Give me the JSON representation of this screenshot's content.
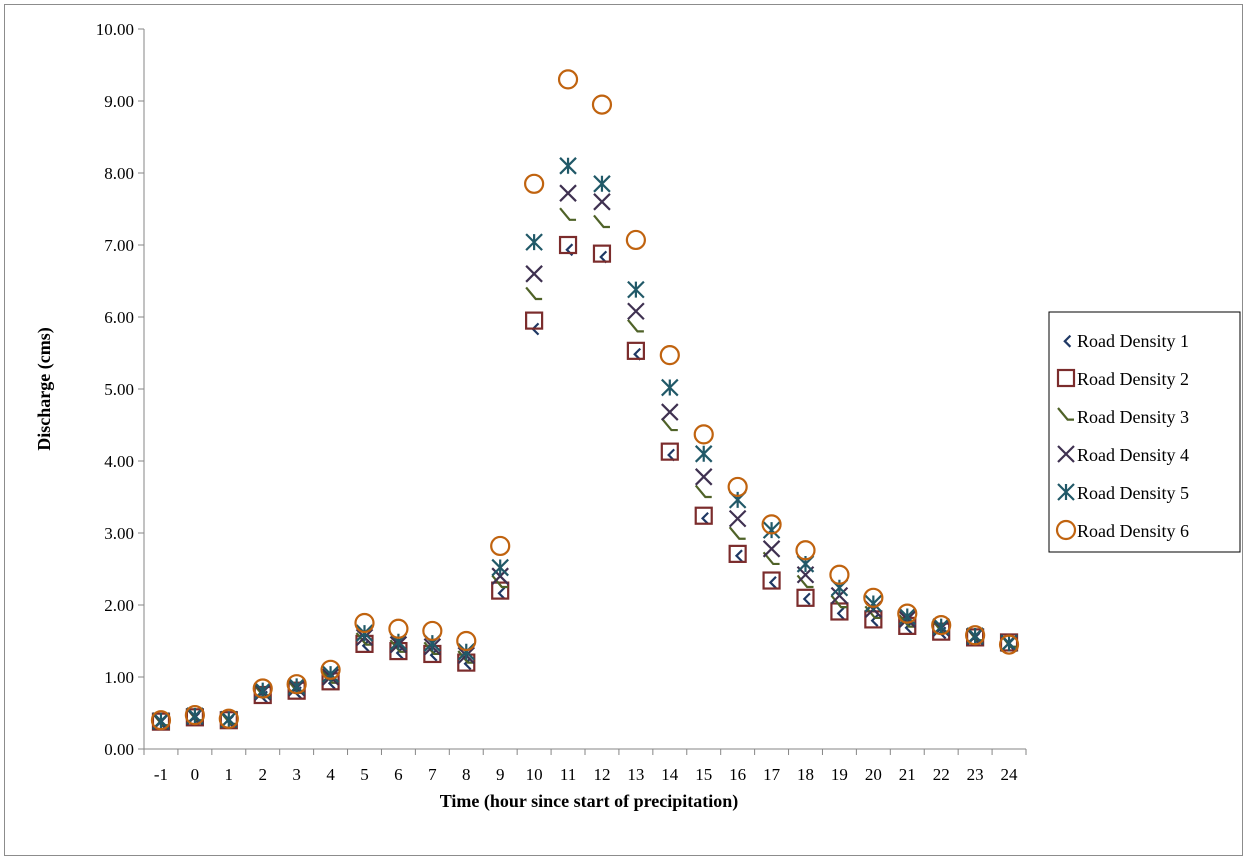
{
  "chart_data": {
    "type": "scatter",
    "title": "",
    "xlabel": "Time (hour since start of precipitation)",
    "ylabel": "Discharge (cms)",
    "x": [
      -1,
      0,
      1,
      2,
      3,
      4,
      5,
      6,
      7,
      8,
      9,
      10,
      11,
      12,
      13,
      14,
      15,
      16,
      17,
      18,
      19,
      20,
      21,
      22,
      23,
      24
    ],
    "ylim": [
      0,
      10
    ],
    "ytick_step": 1,
    "ytick_format_decimals": 2,
    "grid": false,
    "legend_position": "right",
    "series": [
      {
        "name": "Road Density 1",
        "marker": "diamond",
        "color": "#1f3864",
        "values": [
          0.38,
          0.44,
          0.4,
          0.74,
          0.8,
          0.93,
          1.45,
          1.35,
          1.32,
          1.2,
          2.18,
          5.85,
          6.95,
          6.85,
          5.5,
          4.1,
          3.22,
          2.7,
          2.33,
          2.1,
          1.9,
          1.8,
          1.7,
          1.63,
          1.55,
          1.48
        ]
      },
      {
        "name": "Road Density 2",
        "marker": "square",
        "color": "#7b2c2c",
        "values": [
          0.38,
          0.44,
          0.4,
          0.75,
          0.81,
          0.94,
          1.46,
          1.36,
          1.32,
          1.2,
          2.2,
          5.95,
          7.0,
          6.88,
          5.53,
          4.13,
          3.24,
          2.71,
          2.34,
          2.1,
          1.91,
          1.8,
          1.71,
          1.63,
          1.55,
          1.48
        ]
      },
      {
        "name": "Road Density 3",
        "marker": "triangle",
        "color": "#4f6228",
        "values": [
          0.38,
          0.45,
          0.4,
          0.77,
          0.83,
          0.97,
          1.5,
          1.4,
          1.37,
          1.25,
          2.3,
          6.3,
          7.4,
          7.3,
          5.85,
          4.48,
          3.55,
          2.97,
          2.62,
          2.3,
          2.02,
          1.87,
          1.75,
          1.66,
          1.56,
          1.47
        ]
      },
      {
        "name": "Road Density 4",
        "marker": "x",
        "color": "#3f3151",
        "values": [
          0.38,
          0.45,
          0.41,
          0.79,
          0.85,
          1.0,
          1.55,
          1.45,
          1.42,
          1.3,
          2.4,
          6.6,
          7.72,
          7.6,
          6.08,
          4.68,
          3.78,
          3.2,
          2.78,
          2.42,
          2.13,
          1.94,
          1.8,
          1.68,
          1.56,
          1.47
        ]
      },
      {
        "name": "Road Density 5",
        "marker": "asterisk",
        "color": "#215968",
        "values": [
          0.39,
          0.46,
          0.41,
          0.81,
          0.87,
          1.04,
          1.61,
          1.49,
          1.47,
          1.35,
          2.52,
          7.04,
          8.1,
          7.85,
          6.38,
          5.02,
          4.1,
          3.46,
          3.04,
          2.57,
          2.24,
          2.02,
          1.84,
          1.7,
          1.57,
          1.47
        ]
      },
      {
        "name": "Road Density 6",
        "marker": "circle",
        "color": "#c0630f",
        "values": [
          0.4,
          0.47,
          0.42,
          0.84,
          0.9,
          1.1,
          1.75,
          1.67,
          1.64,
          1.5,
          2.82,
          7.85,
          9.3,
          8.95,
          7.07,
          5.47,
          4.37,
          3.64,
          3.12,
          2.76,
          2.42,
          2.1,
          1.88,
          1.72,
          1.58,
          1.45
        ]
      }
    ]
  }
}
